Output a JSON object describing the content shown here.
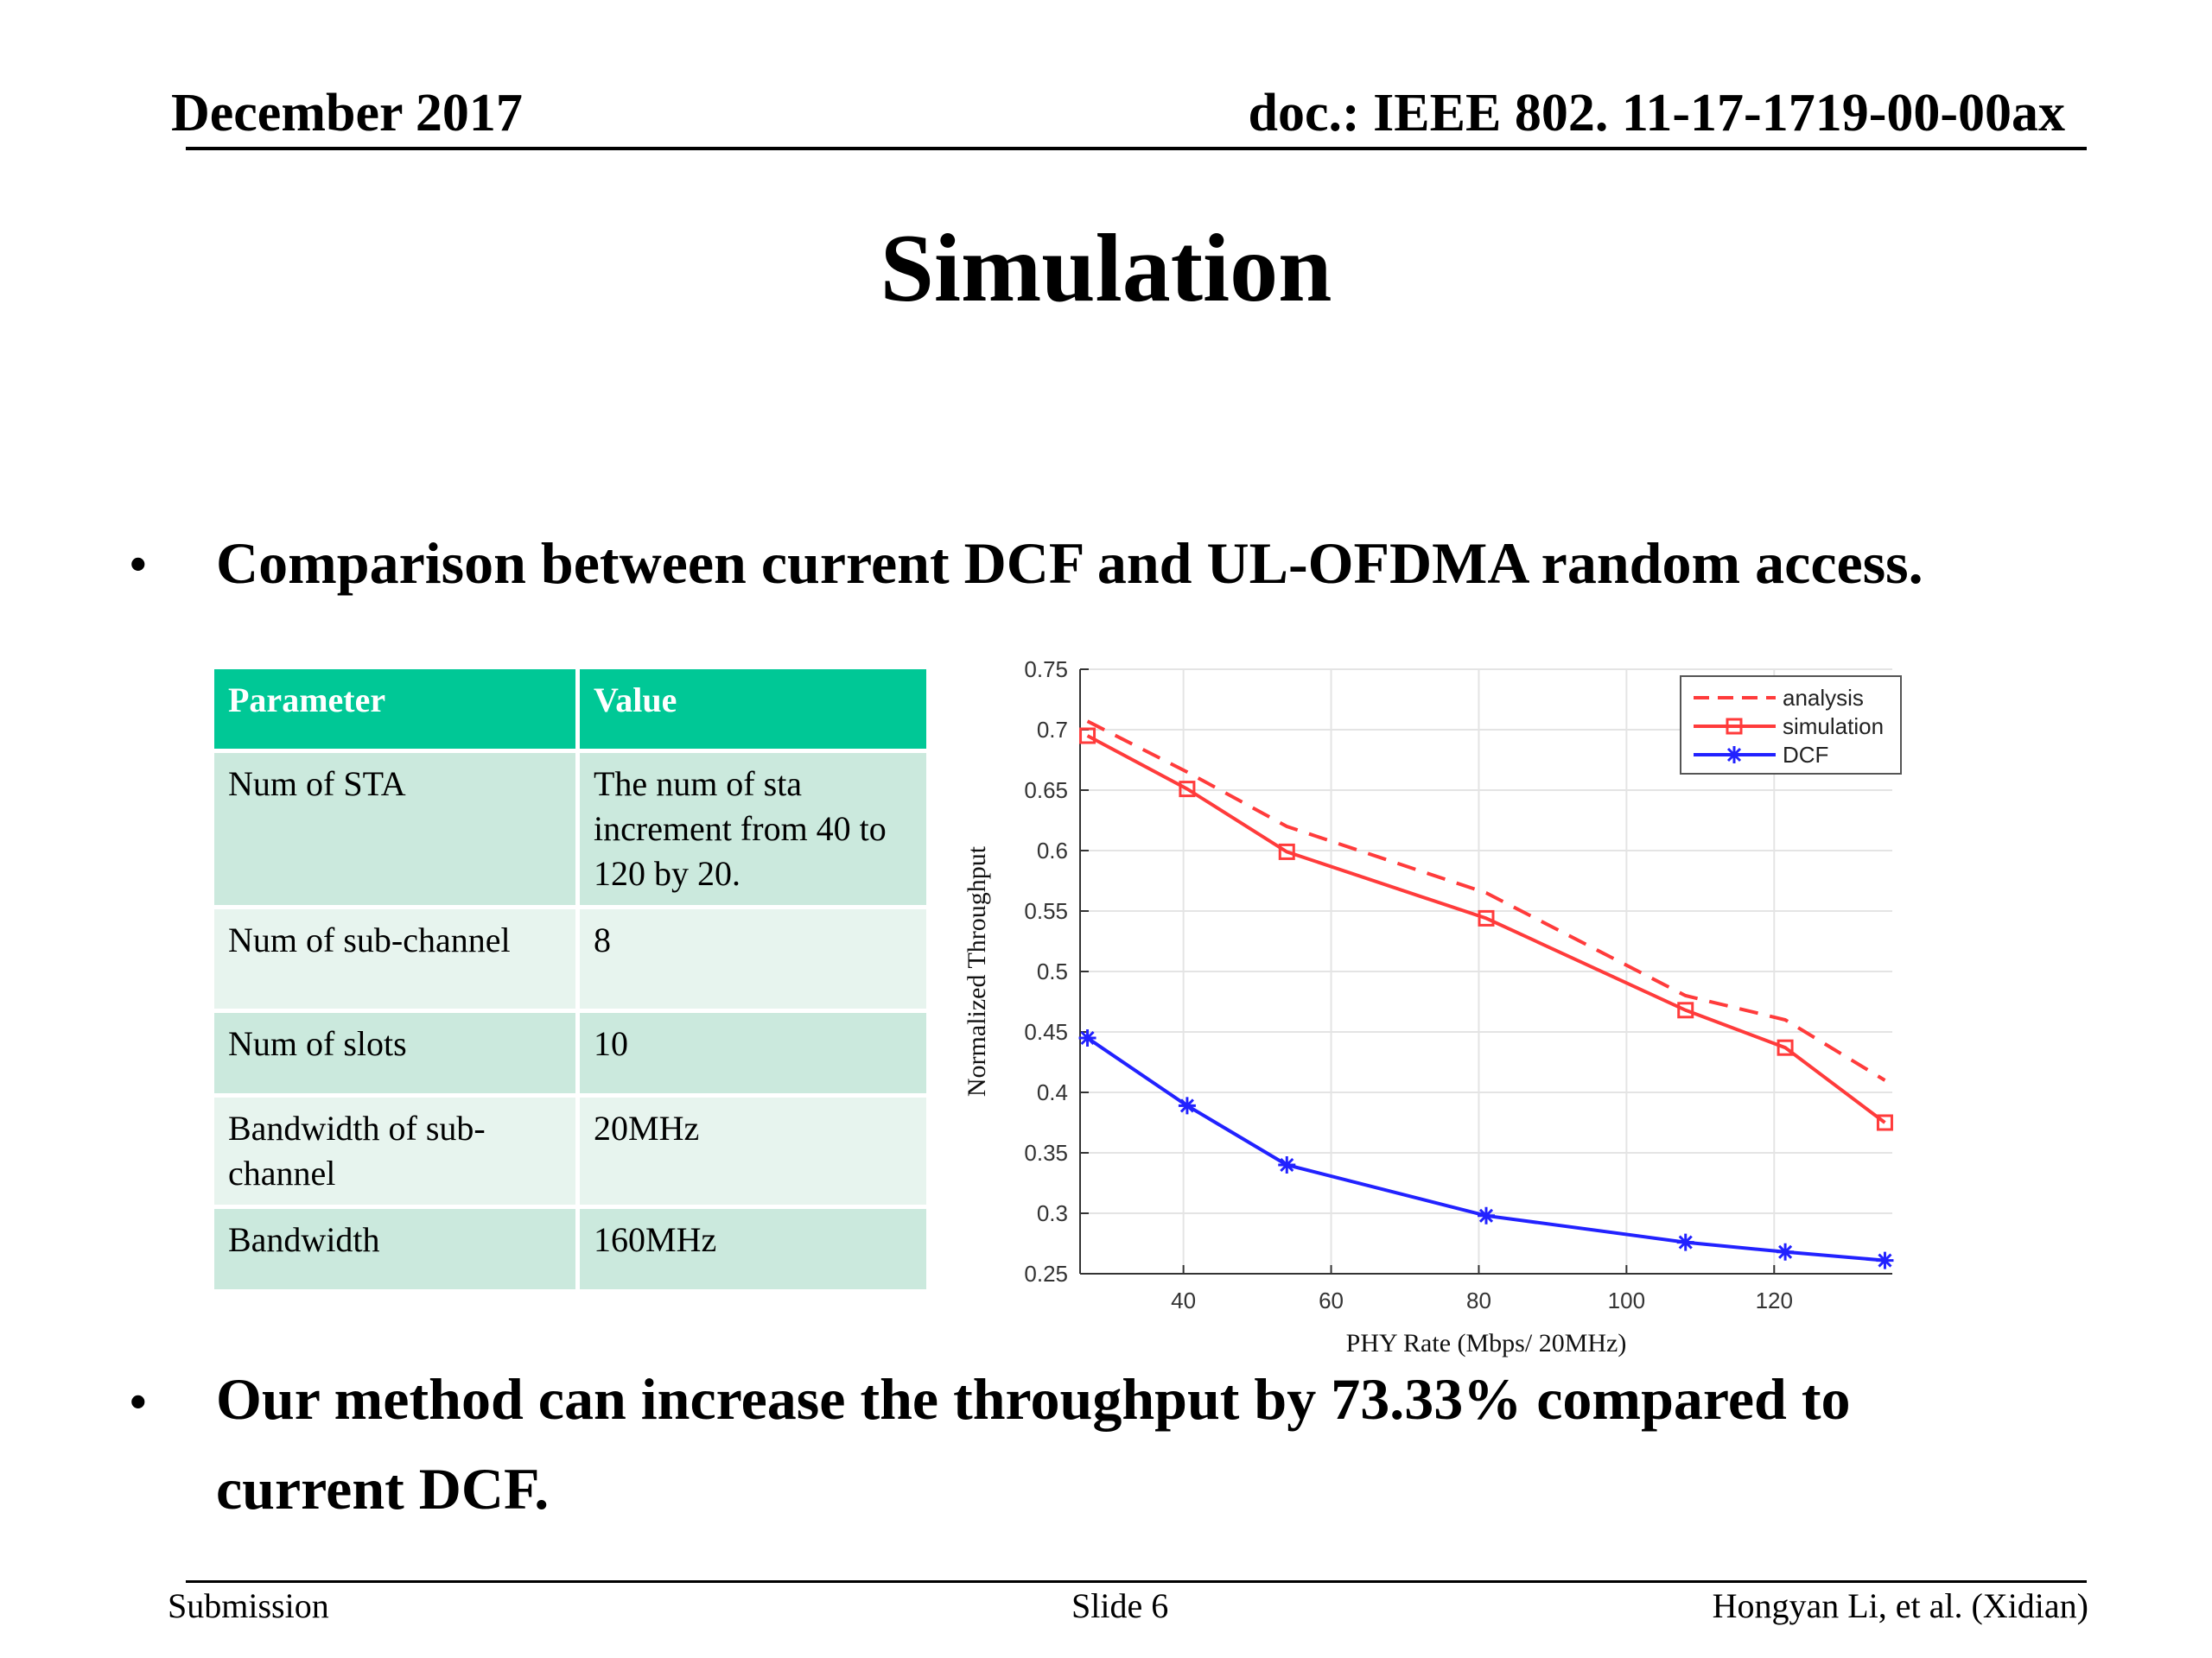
{
  "header": {
    "date": "December 2017",
    "doc_id": "doc.: IEEE 802. 11-17-1719-00-00ax"
  },
  "title": "Simulation",
  "bullets": [
    {
      "marker": "•",
      "text": "Comparison between current DCF and UL-OFDMA random access."
    },
    {
      "marker": "•",
      "text": "Our method can increase the throughput by 73.33% compared to current DCF."
    }
  ],
  "table": {
    "headers": [
      "Parameter",
      "Value"
    ],
    "rows": [
      [
        "Num of  STA",
        "The num of sta increment from 40 to 120  by 20."
      ],
      [
        "Num of  sub-channel",
        "8"
      ],
      [
        "Num of  slots",
        "10"
      ],
      [
        "Bandwidth  of  sub-channel",
        "20MHz"
      ],
      [
        "Bandwidth",
        "160MHz"
      ]
    ]
  },
  "chart_data": {
    "type": "line",
    "xlabel": "PHY  Rate   (Mbps/ 20MHz)",
    "ylabel": "Normalized     Throughput",
    "xlim": [
      26,
      136
    ],
    "ylim": [
      0.25,
      0.75
    ],
    "xticks": [
      40,
      60,
      80,
      100,
      120
    ],
    "yticks": [
      0.25,
      0.3,
      0.35,
      0.4,
      0.45,
      0.5,
      0.55,
      0.6,
      0.65,
      0.7,
      0.75
    ],
    "grid": true,
    "legend_position": "top-right",
    "series": [
      {
        "name": "analysis",
        "color": "#ff3b3b",
        "style": "dashed",
        "marker": "none",
        "x": [
          27,
          40.5,
          54,
          81,
          108,
          121.5,
          135
        ],
        "y": [
          0.707,
          0.665,
          0.62,
          0.565,
          0.48,
          0.46,
          0.41
        ]
      },
      {
        "name": "simulation",
        "color": "#ff3b3b",
        "style": "solid",
        "marker": "square",
        "x": [
          27,
          40.5,
          54,
          81,
          108,
          121.5,
          135
        ],
        "y": [
          0.695,
          0.651,
          0.599,
          0.544,
          0.468,
          0.437,
          0.375
        ]
      },
      {
        "name": "DCF",
        "color": "#2222ff",
        "style": "solid",
        "marker": "star",
        "x": [
          27,
          40.5,
          54,
          81,
          108,
          121.5,
          135
        ],
        "y": [
          0.445,
          0.389,
          0.34,
          0.298,
          0.276,
          0.268,
          0.261
        ]
      }
    ]
  },
  "footer": {
    "left": "Submission",
    "center": "Slide 6",
    "right": "Hongyan Li, et al. (Xidian)"
  }
}
